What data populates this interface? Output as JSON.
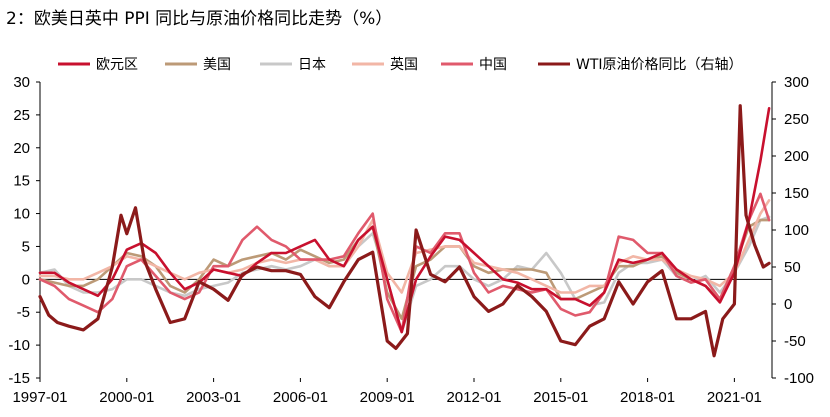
{
  "chart_data": {
    "type": "line",
    "title": "2：欧美日英中 PPI 同比与原油价格同比走势（%）",
    "x_ticks": [
      "1997-01",
      "2000-01",
      "2003-01",
      "2006-01",
      "2009-01",
      "2012-01",
      "2015-01",
      "2018-01",
      "2021-01"
    ],
    "x_range": [
      1997.0,
      2022.3
    ],
    "y_left": {
      "range": [
        -15,
        30
      ],
      "ticks": [
        30,
        25,
        20,
        15,
        10,
        5,
        0,
        -5,
        -10,
        -15
      ]
    },
    "y_right": {
      "range": [
        -100,
        300
      ],
      "ticks": [
        300,
        250,
        200,
        150,
        100,
        50,
        0,
        -50,
        -100
      ]
    },
    "legend_position": "top",
    "grid": false,
    "series": [
      {
        "name": "欧元区",
        "axis": "left",
        "color": "#C8102E",
        "x": [
          1997.0,
          1997.5,
          1998.0,
          1998.5,
          1999.0,
          1999.5,
          2000.0,
          2000.5,
          2001.0,
          2001.5,
          2002.0,
          2002.5,
          2003.0,
          2003.5,
          2004.0,
          2004.5,
          2005.0,
          2005.5,
          2006.0,
          2006.5,
          2007.0,
          2007.5,
          2008.0,
          2008.5,
          2009.0,
          2009.5,
          2010.0,
          2010.5,
          2011.0,
          2011.5,
          2012.0,
          2012.5,
          2013.0,
          2013.5,
          2014.0,
          2014.5,
          2015.0,
          2015.5,
          2016.0,
          2016.5,
          2017.0,
          2017.5,
          2018.0,
          2018.5,
          2019.0,
          2019.5,
          2020.0,
          2020.5,
          2021.0,
          2021.5,
          2021.9,
          2022.2
        ],
        "y": [
          1,
          1,
          -0.5,
          -1.5,
          -2.5,
          0,
          4.5,
          5.5,
          4,
          1,
          -1.5,
          -0.5,
          1.5,
          1,
          0.5,
          2.5,
          4,
          4,
          5,
          6,
          3,
          2,
          6,
          8,
          0,
          -8,
          0,
          3.5,
          6.5,
          6,
          4,
          2,
          0,
          -0.5,
          -1.5,
          -1.5,
          -3,
          -3,
          -4,
          -2,
          3,
          2.5,
          3,
          4,
          1.5,
          0,
          -1,
          -3.5,
          1,
          9,
          18,
          26
        ]
      },
      {
        "name": "美国",
        "axis": "left",
        "color": "#BC9A77",
        "x": [
          1997.0,
          1997.5,
          1998.0,
          1998.5,
          1999.0,
          1999.5,
          2000.0,
          2000.5,
          2001.0,
          2001.5,
          2002.0,
          2002.5,
          2003.0,
          2003.5,
          2004.0,
          2004.5,
          2005.0,
          2005.5,
          2006.0,
          2006.5,
          2007.0,
          2007.5,
          2008.0,
          2008.5,
          2009.0,
          2009.5,
          2010.0,
          2010.5,
          2011.0,
          2011.5,
          2012.0,
          2012.5,
          2013.0,
          2013.5,
          2014.0,
          2014.5,
          2015.0,
          2015.5,
          2016.0,
          2016.5,
          2017.0,
          2017.5,
          2018.0,
          2018.5,
          2019.0,
          2019.5,
          2020.0,
          2020.5,
          2021.0,
          2021.5,
          2021.9,
          2022.2
        ],
        "y": [
          0,
          -0.5,
          -1,
          -1,
          0,
          2,
          4,
          3.5,
          2,
          -1,
          -2,
          0,
          3,
          2,
          3,
          3.5,
          4,
          3,
          4.5,
          3.5,
          2.5,
          3,
          6,
          8,
          -2,
          -6,
          2,
          3,
          5,
          5,
          2,
          1,
          1.5,
          1.5,
          1.5,
          1,
          -3,
          -3,
          -2,
          -1,
          2,
          2,
          3,
          3.5,
          1,
          0,
          -1,
          -3,
          2,
          8,
          9,
          9
        ]
      },
      {
        "name": "日本",
        "axis": "left",
        "color": "#C8C8C8",
        "x": [
          1997.0,
          1997.5,
          1998.0,
          1998.5,
          1999.0,
          1999.5,
          2000.0,
          2000.5,
          2001.0,
          2001.5,
          2002.0,
          2002.5,
          2003.0,
          2003.5,
          2004.0,
          2004.5,
          2005.0,
          2005.5,
          2006.0,
          2006.5,
          2007.0,
          2007.5,
          2008.0,
          2008.5,
          2009.0,
          2009.5,
          2010.0,
          2010.5,
          2011.0,
          2011.5,
          2012.0,
          2012.5,
          2013.0,
          2013.5,
          2014.0,
          2014.5,
          2015.0,
          2015.5,
          2016.0,
          2016.5,
          2017.0,
          2017.5,
          2018.0,
          2018.5,
          2019.0,
          2019.5,
          2020.0,
          2020.5,
          2021.0,
          2021.5,
          2021.9,
          2022.2
        ],
        "y": [
          1,
          1.5,
          -1,
          -2,
          -2,
          -1.5,
          0,
          0,
          -1,
          -2,
          -2.5,
          -1.5,
          -1,
          -0.5,
          1,
          1.5,
          2,
          1.5,
          2,
          3,
          2,
          2,
          5,
          7,
          0,
          -8,
          -1,
          0,
          2,
          2,
          0,
          -1,
          0,
          2,
          1.5,
          4,
          1,
          -3,
          -4,
          -3.5,
          1,
          2.5,
          2.5,
          3,
          0.5,
          -0.5,
          0.5,
          -2,
          1,
          5,
          9,
          9.5
        ]
      },
      {
        "name": "英国",
        "axis": "left",
        "color": "#F2B6A6",
        "x": [
          1997.0,
          1997.5,
          1998.0,
          1998.5,
          1999.0,
          1999.5,
          2000.0,
          2000.5,
          2001.0,
          2001.5,
          2002.0,
          2002.5,
          2003.0,
          2003.5,
          2004.0,
          2004.5,
          2005.0,
          2005.5,
          2006.0,
          2006.5,
          2007.0,
          2007.5,
          2008.0,
          2008.5,
          2009.0,
          2009.5,
          2010.0,
          2010.5,
          2011.0,
          2011.5,
          2012.0,
          2012.5,
          2013.0,
          2013.5,
          2014.0,
          2014.5,
          2015.0,
          2015.5,
          2016.0,
          2016.5,
          2017.0,
          2017.5,
          2018.0,
          2018.5,
          2019.0,
          2019.5,
          2020.0,
          2020.5,
          2021.0,
          2021.5,
          2021.9,
          2022.2
        ],
        "y": [
          0.5,
          0.5,
          0,
          0,
          1,
          2,
          3.5,
          3,
          2,
          1,
          0,
          1,
          1.5,
          1,
          1.5,
          2.5,
          3,
          2.5,
          3,
          3,
          2,
          2,
          5,
          9,
          1,
          -2,
          4,
          4.5,
          5,
          5,
          2.5,
          2,
          1.5,
          1,
          0,
          -1,
          -2,
          -2,
          -1,
          -1,
          2.5,
          3.5,
          3,
          3,
          1.5,
          0.5,
          0,
          -1,
          1,
          6,
          10,
          12
        ]
      },
      {
        "name": "中国",
        "axis": "left",
        "color": "#E05A6C",
        "x": [
          1997.0,
          1997.5,
          1998.0,
          1998.5,
          1999.0,
          1999.5,
          2000.0,
          2000.5,
          2001.0,
          2001.5,
          2002.0,
          2002.5,
          2003.0,
          2003.5,
          2004.0,
          2004.5,
          2005.0,
          2005.5,
          2006.0,
          2006.5,
          2007.0,
          2007.5,
          2008.0,
          2008.5,
          2009.0,
          2009.5,
          2010.0,
          2010.5,
          2011.0,
          2011.5,
          2012.0,
          2012.5,
          2013.0,
          2013.5,
          2014.0,
          2014.5,
          2015.0,
          2015.5,
          2016.0,
          2016.5,
          2017.0,
          2017.5,
          2018.0,
          2018.5,
          2019.0,
          2019.5,
          2020.0,
          2020.5,
          2021.0,
          2021.5,
          2021.9,
          2022.2
        ],
        "y": [
          0,
          -1,
          -3,
          -4,
          -5,
          -3,
          2,
          3,
          0.5,
          -2,
          -3,
          -2,
          2,
          2,
          6,
          8,
          6,
          5,
          3,
          3,
          3,
          3.5,
          7,
          10,
          -3,
          -8,
          5,
          4,
          7,
          7,
          1,
          -2,
          -1,
          -1.5,
          -2,
          -1.5,
          -4.5,
          -5.5,
          -5,
          -2,
          6.5,
          6,
          4,
          4,
          0.5,
          -0.5,
          0,
          -3,
          2,
          9,
          13,
          9
        ]
      },
      {
        "name": "WTI原油价格同比（右轴）",
        "axis": "right",
        "color": "#8B1A1A",
        "x": [
          1997.0,
          1997.3,
          1997.6,
          1998.0,
          1998.5,
          1999.0,
          1999.5,
          1999.8,
          2000.0,
          2000.3,
          2000.6,
          2001.0,
          2001.5,
          2002.0,
          2002.5,
          2003.0,
          2003.5,
          2004.0,
          2004.5,
          2005.0,
          2005.5,
          2006.0,
          2006.5,
          2007.0,
          2007.5,
          2008.0,
          2008.5,
          2009.0,
          2009.3,
          2009.7,
          2010.0,
          2010.5,
          2011.0,
          2011.5,
          2012.0,
          2012.5,
          2013.0,
          2013.5,
          2014.0,
          2014.5,
          2015.0,
          2015.5,
          2016.0,
          2016.5,
          2017.0,
          2017.5,
          2018.0,
          2018.5,
          2019.0,
          2019.5,
          2020.0,
          2020.3,
          2020.6,
          2021.0,
          2021.2,
          2021.4,
          2021.7,
          2022.0,
          2022.2
        ],
        "y": [
          10,
          -15,
          -25,
          -30,
          -35,
          -20,
          50,
          120,
          95,
          130,
          60,
          20,
          -25,
          -20,
          30,
          20,
          5,
          40,
          50,
          45,
          45,
          40,
          10,
          -5,
          30,
          60,
          70,
          -50,
          -60,
          -40,
          100,
          40,
          30,
          50,
          10,
          -10,
          0,
          25,
          10,
          -10,
          -50,
          -55,
          -30,
          -20,
          30,
          0,
          30,
          45,
          -20,
          -20,
          -10,
          -70,
          -20,
          0,
          268,
          120,
          80,
          50,
          55
        ]
      }
    ]
  }
}
